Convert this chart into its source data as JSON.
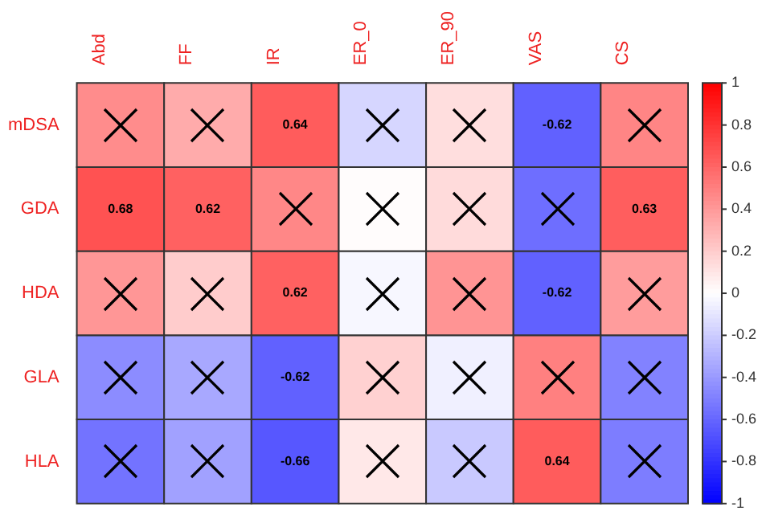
{
  "chart_data": {
    "type": "heatmap",
    "categories": [
      "Abd",
      "FF",
      "IR",
      "ER_0",
      "ER_90",
      "VAS",
      "CS"
    ],
    "y_categories": [
      "mDSA",
      "GDA",
      "HDA",
      "GLA",
      "HLA"
    ],
    "cells": [
      [
        0.45,
        0.33,
        0.64,
        -0.16,
        0.13,
        -0.62,
        0.48
      ],
      [
        0.68,
        0.62,
        0.47,
        0.01,
        0.14,
        -0.57,
        0.63
      ],
      [
        0.41,
        0.2,
        0.62,
        -0.03,
        0.42,
        -0.62,
        0.39
      ],
      [
        -0.45,
        -0.34,
        -0.62,
        0.18,
        -0.06,
        0.5,
        -0.49
      ],
      [
        -0.55,
        -0.37,
        -0.66,
        0.09,
        -0.21,
        0.64,
        -0.51
      ]
    ],
    "cell_labels": [
      [
        null,
        null,
        "0.64",
        null,
        null,
        "-0.62",
        null
      ],
      [
        "0.68",
        "0.62",
        null,
        null,
        null,
        null,
        "0.63"
      ],
      [
        null,
        null,
        "0.62",
        null,
        null,
        "-0.62",
        null
      ],
      [
        null,
        null,
        "-0.62",
        null,
        null,
        null,
        null
      ],
      [
        null,
        null,
        "-0.66",
        null,
        null,
        "0.64",
        null
      ]
    ],
    "clim": [
      -1,
      1
    ],
    "cticks": [
      -1,
      -0.8,
      -0.6,
      -0.4,
      -0.2,
      0,
      0.2,
      0.4,
      0.6,
      0.8,
      1
    ]
  }
}
